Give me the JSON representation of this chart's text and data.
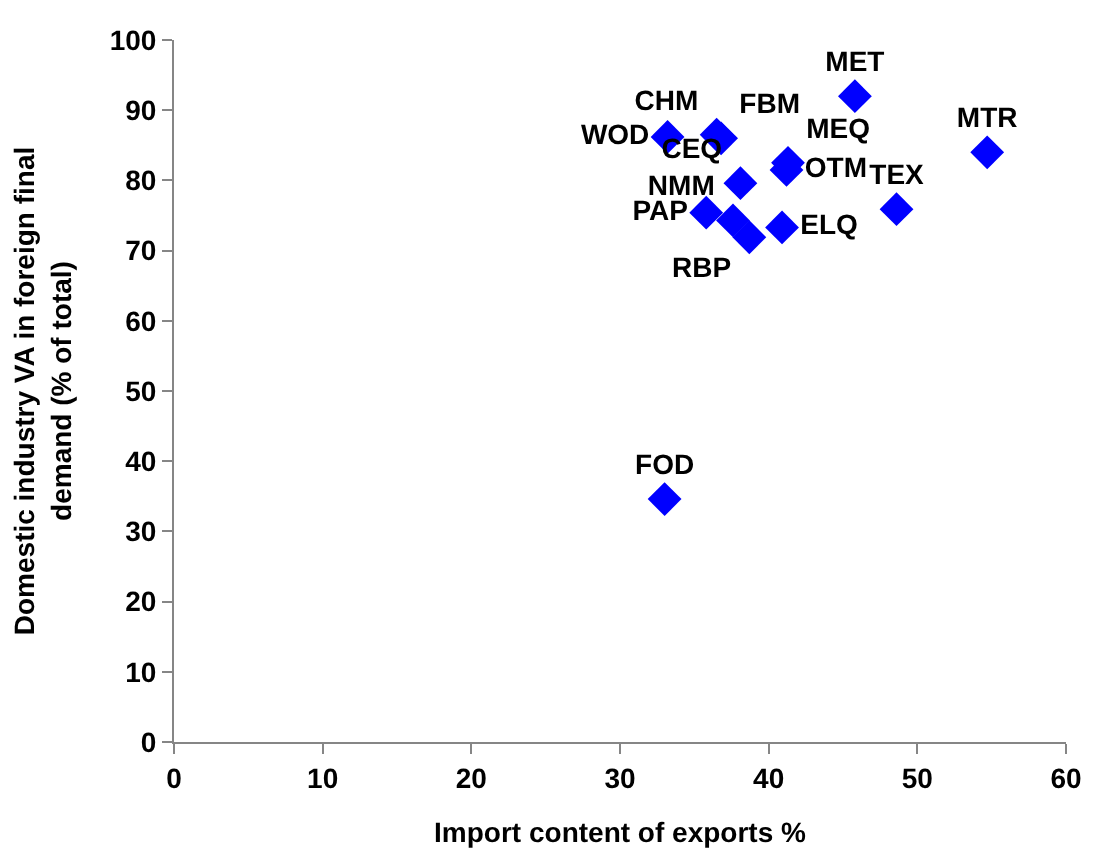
{
  "chart_data": {
    "type": "scatter",
    "xlabel": "Import content of exports %",
    "ylabel": "Domestic industry VA in foreign final demand (% of total)",
    "x": [
      33.2,
      36.5,
      36.8,
      45.8,
      41.3,
      41.2,
      54.7,
      38.1,
      35.8,
      37.6,
      40.9,
      48.6,
      38.7,
      33.0
    ],
    "series": [
      {
        "color": "#0000ff",
        "values": [
          86.2,
          86.5,
          86.0,
          92.0,
          82.5,
          81.5,
          84.0,
          79.6,
          75.4,
          74.3,
          73.3,
          75.9,
          71.9,
          34.6
        ]
      }
    ],
    "value_labels": [
      "WOD",
      "CHM",
      "FBM",
      "MET",
      "MEQ",
      "OTM",
      "MTR",
      "CEQ",
      "PAP",
      "NMM",
      "ELQ",
      "TEX",
      "RBP",
      "FOD"
    ],
    "marker": "diamond",
    "xlim": [
      0,
      60
    ],
    "xticks": [
      0,
      10,
      20,
      30,
      40,
      50,
      60
    ],
    "ylim": [
      0,
      100
    ],
    "yticks": [
      0,
      10,
      20,
      30,
      40,
      50,
      60,
      70,
      80,
      90,
      100
    ]
  }
}
